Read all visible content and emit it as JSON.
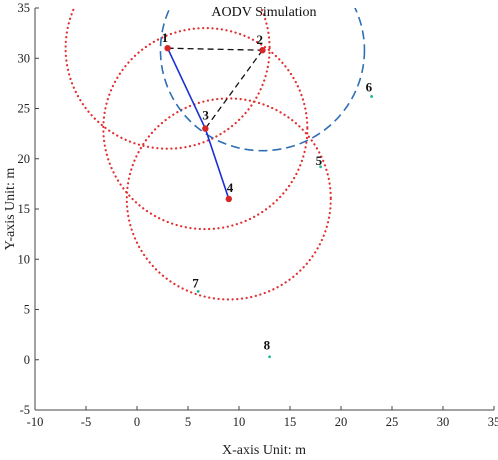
{
  "chart_data": {
    "type": "scatter",
    "title": "AODV Simulation",
    "xlabel": "X-axis Unit: m",
    "ylabel": "Y-axis Unit: m",
    "xlim": [
      -10,
      35
    ],
    "ylim": [
      -5,
      35
    ],
    "xticks": [
      -10,
      -5,
      0,
      5,
      10,
      15,
      20,
      25,
      30,
      35
    ],
    "yticks": [
      -5,
      0,
      5,
      10,
      15,
      20,
      25,
      30,
      35
    ],
    "grid": false,
    "nodes": [
      {
        "id": "1",
        "x": 3.0,
        "y": 31.0,
        "color": "#d62728"
      },
      {
        "id": "2",
        "x": 12.3,
        "y": 30.8,
        "color": "#d62728"
      },
      {
        "id": "3",
        "x": 6.7,
        "y": 23.0,
        "color": "#d62728"
      },
      {
        "id": "4",
        "x": 9.0,
        "y": 16.0,
        "color": "#d62728"
      },
      {
        "id": "5",
        "x": 18.0,
        "y": 19.2,
        "color": "#1abc9c"
      },
      {
        "id": "6",
        "x": 23.0,
        "y": 26.2,
        "color": "#1abc9c"
      },
      {
        "id": "7",
        "x": 6.0,
        "y": 6.8,
        "color": "#1abc9c"
      },
      {
        "id": "8",
        "x": 13.0,
        "y": 0.3,
        "color": "#1abc9c"
      }
    ],
    "range_circles": [
      {
        "center_node": "1",
        "cx": 3.0,
        "cy": 31.0,
        "r": 10,
        "style": "dotted",
        "color": "#e03030"
      },
      {
        "center_node": "3",
        "cx": 6.7,
        "cy": 23.0,
        "r": 10,
        "style": "dotted",
        "color": "#e03030"
      },
      {
        "center_node": "4",
        "cx": 9.0,
        "cy": 16.0,
        "r": 10,
        "style": "dotted",
        "color": "#e03030"
      },
      {
        "center_node": "2",
        "cx": 12.3,
        "cy": 30.8,
        "r": 10,
        "style": "dashed",
        "color": "#2f6fb5"
      }
    ],
    "links": [
      {
        "from": "1",
        "to": "2",
        "style": "dashed",
        "color": "#111111"
      },
      {
        "from": "2",
        "to": "3",
        "style": "dashed",
        "color": "#111111"
      },
      {
        "from": "1",
        "to": "3",
        "style": "solid",
        "color": "#1a2fd6"
      },
      {
        "from": "3",
        "to": "4",
        "style": "solid",
        "color": "#1a2fd6"
      }
    ]
  }
}
